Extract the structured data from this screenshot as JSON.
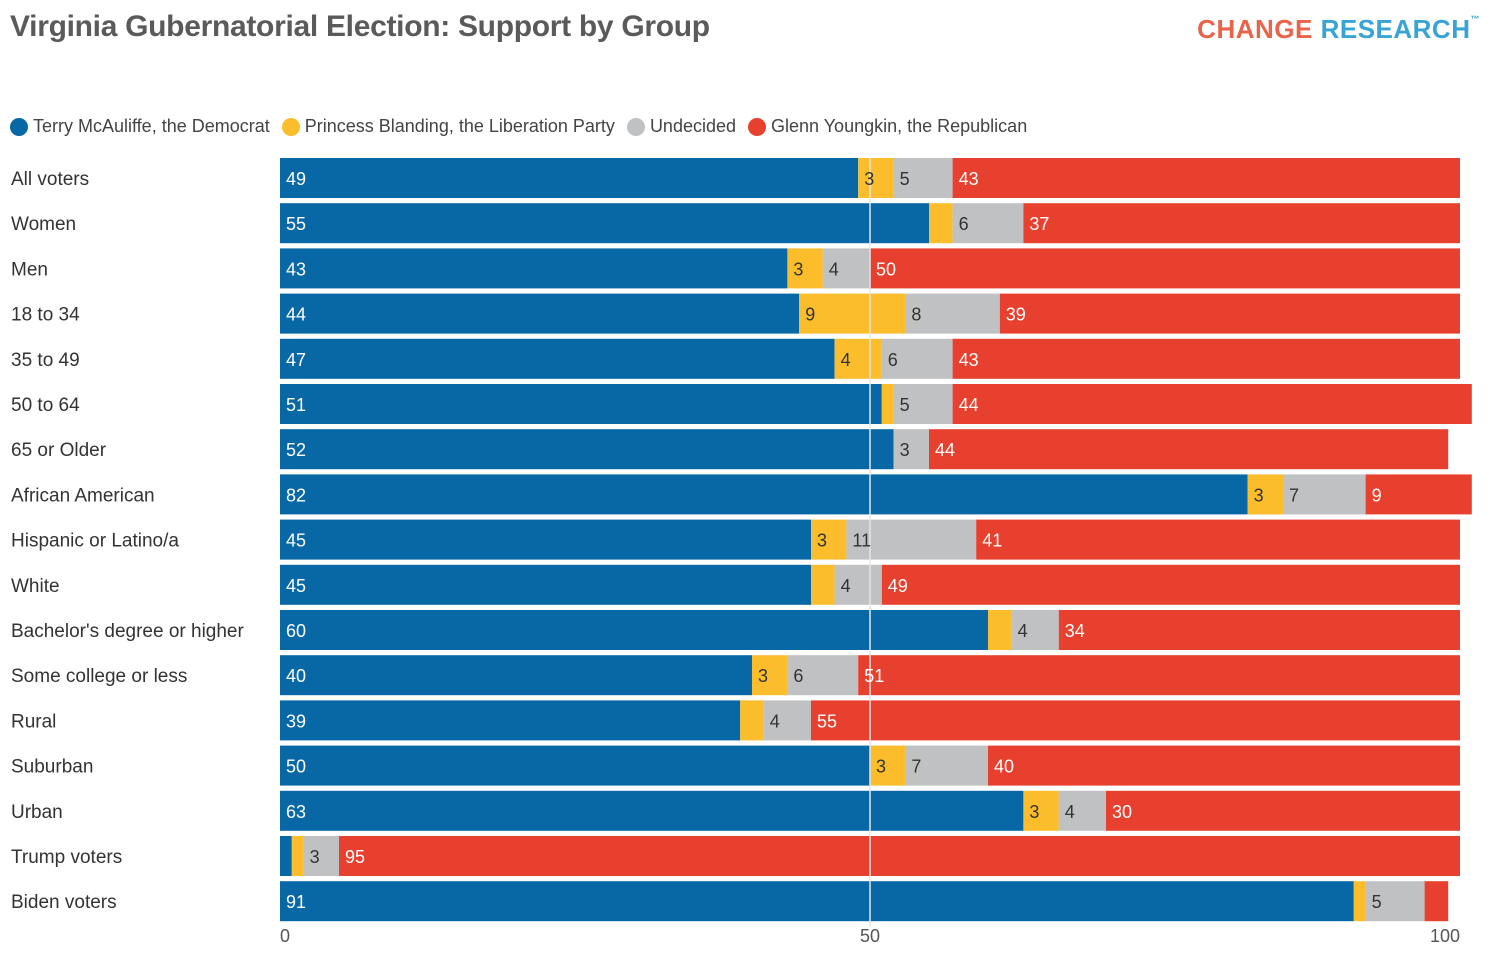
{
  "title": "Virginia Gubernatorial Election: Support by Group",
  "brand": {
    "part1": "CHANGE",
    "part2": "RESEARCH",
    "tm": "™"
  },
  "colors": {
    "democrat": "#0868a6",
    "liberation": "#fbbd2b",
    "undecided": "#c0c1c3",
    "republican": "#e8402e"
  },
  "chart_data": {
    "type": "bar",
    "orientation": "horizontal",
    "stacked": true,
    "categories": [
      "All voters",
      "Women",
      "Men",
      "18 to 34",
      "35 to 49",
      "50 to 64",
      "65 or Older",
      "African American",
      "Hispanic or Latino/a",
      "White",
      "Bachelor's degree or higher",
      "Some college or less",
      "Rural",
      "Suburban",
      "Urban",
      "Trump voters",
      "Biden voters"
    ],
    "series": [
      {
        "name": "Terry McAuliffe, the Democrat",
        "color": "#0868a6",
        "values": [
          49,
          55,
          43,
          44,
          47,
          51,
          52,
          82,
          45,
          45,
          60,
          40,
          39,
          50,
          63,
          1,
          91
        ]
      },
      {
        "name": "Princess Blanding, the Liberation Party",
        "color": "#fbbd2b",
        "values": [
          3,
          2,
          3,
          9,
          4,
          1,
          0,
          3,
          3,
          2,
          2,
          3,
          2,
          3,
          3,
          1,
          1
        ]
      },
      {
        "name": "Undecided",
        "color": "#c0c1c3",
        "values": [
          5,
          6,
          4,
          8,
          6,
          5,
          3,
          7,
          11,
          4,
          4,
          6,
          4,
          7,
          4,
          3,
          5
        ]
      },
      {
        "name": "Glenn Youngkin, the Republican",
        "color": "#e8402e",
        "values": [
          43,
          37,
          50,
          39,
          43,
          44,
          44,
          9,
          41,
          49,
          34,
          51,
          55,
          40,
          30,
          95,
          2
        ]
      }
    ],
    "labels": [
      [
        "49",
        "3",
        "5",
        "43"
      ],
      [
        "55",
        "",
        "6",
        "37"
      ],
      [
        "43",
        "3",
        "4",
        "50"
      ],
      [
        "44",
        "9",
        "8",
        "39"
      ],
      [
        "47",
        "4",
        "6",
        "43"
      ],
      [
        "51",
        "",
        "5",
        "44"
      ],
      [
        "52",
        "",
        "3",
        "44"
      ],
      [
        "82",
        "3",
        "7",
        "9"
      ],
      [
        "45",
        "3",
        "11",
        "41"
      ],
      [
        "45",
        "",
        "4",
        "49"
      ],
      [
        "60",
        "",
        "4",
        "34"
      ],
      [
        "40",
        "3",
        "6",
        "51"
      ],
      [
        "39",
        "",
        "4",
        "55"
      ],
      [
        "50",
        "3",
        "7",
        "40"
      ],
      [
        "63",
        "3",
        "4",
        "30"
      ],
      [
        "",
        "",
        "3",
        "95"
      ],
      [
        "91",
        "",
        "5",
        ""
      ]
    ],
    "x_ticks": [
      0,
      50,
      100
    ],
    "x_tick_labels": [
      "0",
      "50",
      "100"
    ],
    "xlim": [
      0,
      100
    ],
    "reference_line": 50,
    "legend_position": "top-left",
    "grid": false
  }
}
